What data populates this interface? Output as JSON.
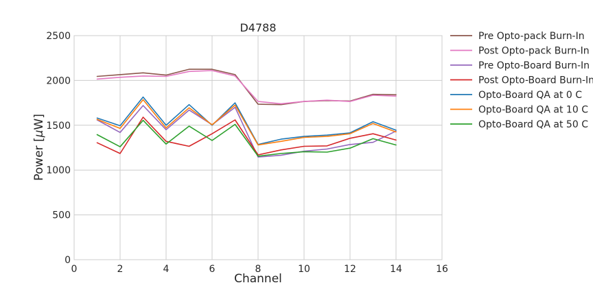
{
  "chart_data": {
    "type": "line",
    "title": "D4788",
    "xlabel": "Channel",
    "ylabel_prefix": "Power [",
    "ylabel_symbol": "μ",
    "ylabel_suffix": "W]",
    "xlim": [
      0,
      16
    ],
    "ylim": [
      0,
      2500
    ],
    "xticks": [
      0,
      2,
      4,
      6,
      8,
      10,
      12,
      14,
      16
    ],
    "yticks": [
      0,
      500,
      1000,
      1500,
      2000,
      2500
    ],
    "grid": true,
    "legend_position": "right-outside",
    "x": [
      1,
      2,
      3,
      4,
      5,
      6,
      7,
      8,
      9,
      10,
      11,
      12,
      13,
      14
    ],
    "series": [
      {
        "name": "Pre Opto-pack Burn-In",
        "color": "#8c564b",
        "values": [
          2045,
          2065,
          2085,
          2060,
          2125,
          2125,
          2065,
          1735,
          1730,
          1765,
          1775,
          1770,
          1845,
          1840
        ]
      },
      {
        "name": "Post Opto-pack Burn-In",
        "color": "#e377c2",
        "values": [
          2015,
          2035,
          2050,
          2045,
          2100,
          2110,
          2050,
          1765,
          1740,
          1765,
          1780,
          1765,
          1835,
          1825
        ]
      },
      {
        "name": "Pre Opto-Board Burn-In",
        "color": "#9467bd",
        "values": [
          1560,
          1420,
          1720,
          1450,
          1670,
          1505,
          1700,
          1145,
          1165,
          1210,
          1235,
          1285,
          1310,
          1435
        ]
      },
      {
        "name": "Post Opto-Board Burn-In",
        "color": "#d62728",
        "values": [
          1305,
          1185,
          1590,
          1320,
          1265,
          1405,
          1560,
          1170,
          1225,
          1265,
          1270,
          1355,
          1405,
          1335
        ]
      },
      {
        "name": "Opto-Board QA at 0 C",
        "color": "#1f77b4",
        "values": [
          1580,
          1495,
          1815,
          1500,
          1730,
          1500,
          1750,
          1285,
          1345,
          1375,
          1390,
          1415,
          1540,
          1445
        ]
      },
      {
        "name": "Opto-Board QA at 10 C",
        "color": "#ff7f0e",
        "values": [
          1565,
          1465,
          1785,
          1470,
          1695,
          1505,
          1725,
          1280,
          1320,
          1365,
          1375,
          1405,
          1520,
          1425
        ]
      },
      {
        "name": "Opto-Board QA at 50 C",
        "color": "#2ca02c",
        "values": [
          1395,
          1260,
          1555,
          1290,
          1490,
          1330,
          1510,
          1155,
          1185,
          1205,
          1200,
          1245,
          1350,
          1280
        ]
      }
    ]
  }
}
